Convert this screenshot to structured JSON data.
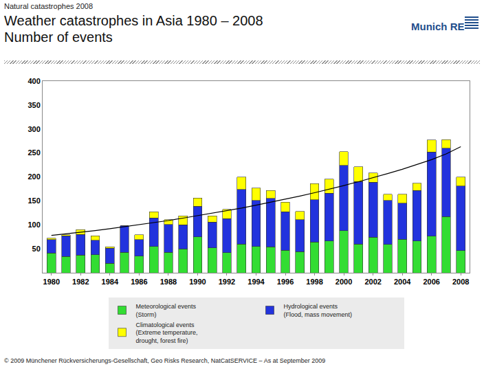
{
  "page": {
    "header": "Natural catastrophes 2008",
    "logo": "Munich RE",
    "footer": "© 2009 Münchener Rückversicherungs-Gesellschaft, Geo Risks Research, NatCatSERVICE – As at September 2009"
  },
  "chart_data": {
    "type": "bar",
    "title": "Weather catastrophes in Asia 1980 – 2008\nNumber of events",
    "stacked": true,
    "grid": false,
    "legend": "bottom",
    "categories": [
      "1980",
      null,
      "1982",
      null,
      "1984",
      null,
      "1986",
      null,
      "1988",
      null,
      "1990",
      null,
      "1992",
      null,
      "1994",
      null,
      "1996",
      null,
      "1998",
      null,
      "2000",
      null,
      "2002",
      null,
      "2004",
      null,
      "2006",
      null,
      "2008"
    ],
    "series": [
      {
        "name": "Meteorological events\n(Storm)",
        "color": "#33dd33",
        "values": [
          41,
          34,
          37,
          38,
          20,
          43,
          35,
          55,
          43,
          50,
          75,
          52,
          42,
          60,
          55,
          54,
          47,
          44,
          64,
          66,
          88,
          60,
          74,
          59,
          70,
          66,
          76,
          117,
          46
        ]
      },
      {
        "name": "Hydrological events\n(Flood, mass movement)",
        "color": "#2233dd",
        "values": [
          28,
          43,
          43,
          30,
          31,
          55,
          34,
          59,
          58,
          50,
          64,
          54,
          71,
          114,
          96,
          101,
          80,
          67,
          88,
          100,
          136,
          130,
          115,
          92,
          75,
          106,
          176,
          143,
          135
        ]
      },
      {
        "name": "Climatological events\n(Extreme temperature,\ndrought, forest fire)",
        "color": "#ffff00",
        "values": [
          3,
          2,
          10,
          9,
          3,
          0,
          10,
          13,
          10,
          19,
          17,
          13,
          19,
          26,
          26,
          17,
          20,
          17,
          34,
          29,
          29,
          31,
          19,
          13,
          19,
          15,
          25,
          18,
          19
        ]
      },
      {
        "type": "line",
        "color": "#000000",
        "values": [
          78,
          81,
          84,
          88,
          92,
          96,
          100,
          104,
          109,
          114,
          119,
          124,
          129,
          135,
          141,
          147,
          153,
          160,
          167,
          174,
          182,
          190,
          198,
          207,
          216,
          226,
          236,
          248,
          263
        ]
      }
    ],
    "ylim": [
      0,
      400
    ],
    "yticks": [
      50,
      100,
      150,
      200,
      250,
      300,
      350,
      400
    ]
  }
}
